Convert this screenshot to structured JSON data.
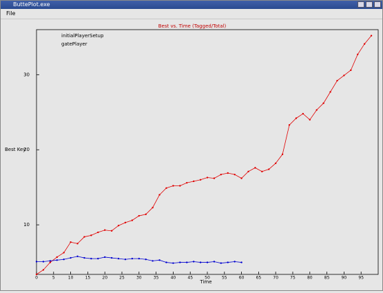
{
  "window": {
    "title": "ButtePlot.exe",
    "menu": [
      "File"
    ]
  },
  "chart_data": {
    "type": "line",
    "title": "Best vs. Time (Tagged/Total)",
    "x_label": "Time",
    "y_label": "Best Key",
    "xlim": [
      0,
      100
    ],
    "xticks": [
      0,
      5,
      10,
      15,
      20,
      25,
      30,
      35,
      40,
      45,
      50,
      55,
      60,
      65,
      70,
      75,
      80,
      85,
      90,
      95
    ],
    "ylim": [
      3.4,
      36
    ],
    "yticks": [
      10,
      20,
      30
    ],
    "legend": "upper-left",
    "series": [
      {
        "name": "initialPlayerSetup",
        "color": "#e00000",
        "x": [
          0,
          2,
          4,
          6,
          8,
          10,
          12,
          14,
          16,
          18,
          20,
          22,
          24,
          26,
          28,
          30,
          32,
          34,
          36,
          38,
          40,
          42,
          44,
          46,
          48,
          50,
          52,
          54,
          56,
          58,
          60,
          62,
          64,
          66,
          68,
          70,
          72,
          74,
          76,
          78,
          80,
          82,
          84,
          86,
          88,
          90,
          92,
          94,
          96,
          98
        ],
        "values": [
          3.4,
          4.0,
          5.0,
          5.7,
          6.3,
          7.7,
          7.5,
          8.4,
          8.6,
          9.0,
          9.3,
          9.2,
          9.9,
          10.3,
          10.6,
          11.2,
          11.4,
          12.3,
          14.0,
          14.9,
          15.2,
          15.2,
          15.6,
          15.8,
          16.0,
          16.3,
          16.2,
          16.7,
          16.9,
          16.7,
          16.2,
          17.1,
          17.6,
          17.1,
          17.4,
          18.2,
          19.4,
          23.3,
          24.2,
          24.8,
          24.0,
          25.3,
          26.2,
          27.7,
          29.2,
          29.9,
          30.6,
          32.7,
          34.1,
          35.2
        ]
      },
      {
        "name": "gatePlayer",
        "color": "#0000d0",
        "x": [
          0,
          2,
          4,
          6,
          8,
          10,
          12,
          14,
          16,
          18,
          20,
          22,
          24,
          26,
          28,
          30,
          32,
          34,
          36,
          38,
          40,
          42,
          44,
          46,
          48,
          50,
          52,
          54,
          56,
          58,
          60
        ],
        "values": [
          5.1,
          5.1,
          5.2,
          5.3,
          5.4,
          5.6,
          5.8,
          5.6,
          5.5,
          5.5,
          5.7,
          5.6,
          5.5,
          5.4,
          5.5,
          5.5,
          5.4,
          5.2,
          5.3,
          5.0,
          4.9,
          5.0,
          5.0,
          5.1,
          5.0,
          5.0,
          5.1,
          4.9,
          5.0,
          5.1,
          5.0
        ]
      }
    ]
  }
}
